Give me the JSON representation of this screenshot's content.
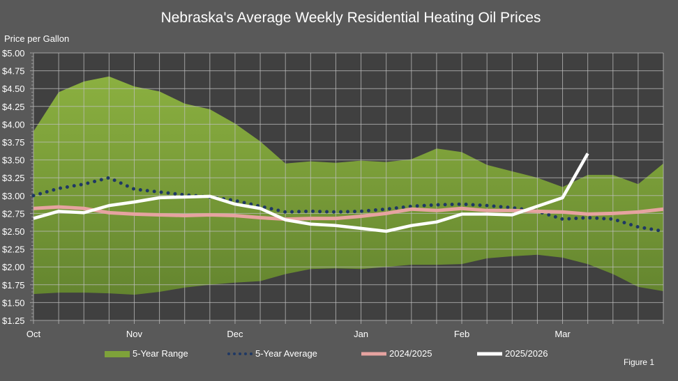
{
  "chart_data": {
    "type": "line",
    "title": "Nebraska's Average Weekly Residential Heating Oil Prices",
    "ylabel": "Price per Gallon",
    "xlabel": "",
    "ylim": [
      1.25,
      5.0
    ],
    "y_ticks": [
      "$1.25",
      "$1.50",
      "$1.75",
      "$2.00",
      "$2.25",
      "$2.50",
      "$2.75",
      "$3.00",
      "$3.25",
      "$3.50",
      "$3.75",
      "$4.00",
      "$4.25",
      "$4.50",
      "$4.75",
      "$5.00"
    ],
    "x_month_labels": [
      {
        "label": "Oct",
        "index": 0
      },
      {
        "label": "Nov",
        "index": 4
      },
      {
        "label": "Dec",
        "index": 8
      },
      {
        "label": "Jan",
        "index": 13
      },
      {
        "label": "Feb",
        "index": 17
      },
      {
        "label": "Mar",
        "index": 21
      }
    ],
    "weeks": 26,
    "grid": true,
    "legend_position": "bottom",
    "range": {
      "name": "5-Year Range",
      "color": "#7ea23a",
      "upper": [
        3.9,
        4.45,
        4.6,
        4.67,
        4.53,
        4.46,
        4.29,
        4.21,
        4.01,
        3.76,
        3.45,
        3.48,
        3.46,
        3.49,
        3.47,
        3.51,
        3.66,
        3.61,
        3.43,
        3.34,
        3.25,
        3.12,
        3.29,
        3.29,
        3.16,
        3.45
      ],
      "lower": [
        1.62,
        1.64,
        1.64,
        1.63,
        1.61,
        1.65,
        1.71,
        1.75,
        1.78,
        1.8,
        1.9,
        1.97,
        1.98,
        1.97,
        2.0,
        2.03,
        2.03,
        2.04,
        2.12,
        2.15,
        2.17,
        2.13,
        2.04,
        1.9,
        1.72,
        1.66
      ]
    },
    "series": [
      {
        "name": "5-Year Average",
        "color": "#1f3864",
        "style": "dotted",
        "values": [
          3.0,
          3.1,
          3.16,
          3.25,
          3.09,
          3.05,
          3.01,
          2.98,
          2.93,
          2.85,
          2.77,
          2.78,
          2.77,
          2.78,
          2.81,
          2.85,
          2.87,
          2.88,
          2.86,
          2.83,
          2.78,
          2.67,
          2.69,
          2.67,
          2.56,
          2.5
        ]
      },
      {
        "name": "2024/2025",
        "color": "#e6a3a0",
        "style": "solid",
        "values": [
          2.82,
          2.84,
          2.82,
          2.76,
          2.74,
          2.73,
          2.72,
          2.73,
          2.72,
          2.69,
          2.67,
          2.68,
          2.68,
          2.71,
          2.75,
          2.81,
          2.79,
          2.82,
          2.79,
          2.79,
          2.78,
          2.77,
          2.74,
          2.75,
          2.77,
          2.81
        ]
      },
      {
        "name": "2025/2026",
        "color": "#ffffff",
        "style": "solid",
        "values": [
          2.68,
          2.78,
          2.76,
          2.86,
          2.91,
          2.97,
          2.98,
          2.99,
          2.88,
          2.82,
          2.66,
          2.6,
          2.58,
          2.54,
          2.5,
          2.58,
          2.63,
          2.74,
          2.74,
          2.73,
          2.85,
          2.97,
          3.59
        ]
      }
    ]
  },
  "figure_label": "Figure 1"
}
